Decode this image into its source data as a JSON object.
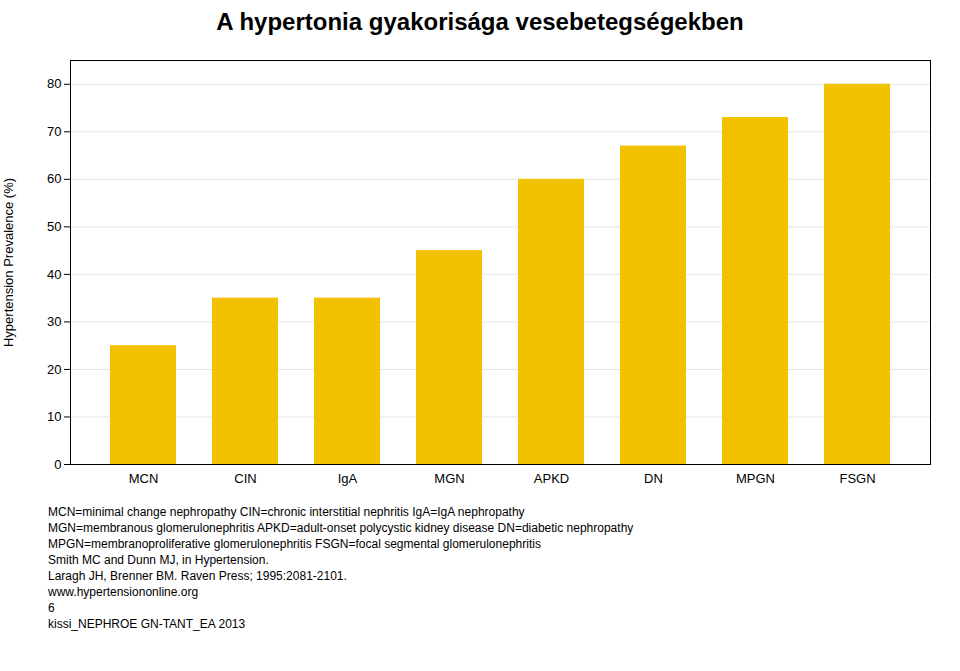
{
  "chart_data": {
    "type": "bar",
    "title": "A hypertonia gyakorisága vesebetegségekben",
    "categories": [
      "MCN",
      "CIN",
      "IgA",
      "MGN",
      "APKD",
      "DN",
      "MPGN",
      "FSGN"
    ],
    "values": [
      25,
      35,
      35,
      45,
      60,
      67,
      73,
      80
    ],
    "color": "#F2C200",
    "y_label": "Hypertension Prevalence (%)",
    "ylim": [
      0,
      85
    ],
    "yticks": [
      0,
      10,
      20,
      30,
      40,
      50,
      60,
      70,
      80
    ],
    "grid": true,
    "annotations": [
      "MCN=minimal change nephropathy   CIN=chronic interstitial nephritis   IgA=IgA nephropathy",
      "MGN=membranous glomerulonephritis   APKD=adult-onset polycystic kidney disease   DN=diabetic nephropathy",
      "MPGN=membranoproliferative glomerulonephritis   FSGN=focal segmental glomerulonephritis",
      "Smith MC and Dunn MJ, in Hypertension.",
      "Laragh JH, Brenner BM. Raven Press; 1995:2081-2101.",
      "www.hypertensiononline.org",
      "6",
      "kissi_NEPHROE GN-TANT_EA 2013"
    ]
  }
}
